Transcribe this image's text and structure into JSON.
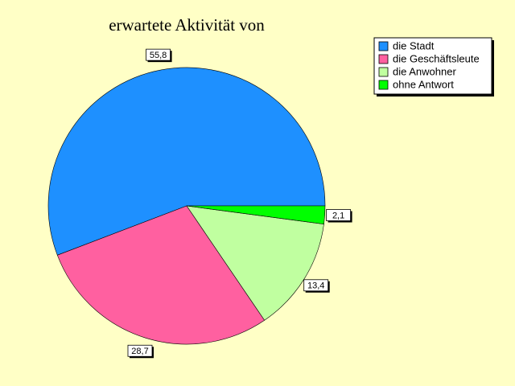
{
  "chart_data": {
    "type": "pie",
    "title": "erwartete Aktivität von",
    "categories": [
      "die Stadt",
      "die Geschäftsleute",
      "die Anwohner",
      "ohne Antwort"
    ],
    "values": [
      55.8,
      28.7,
      13.4,
      2.1
    ],
    "value_labels": [
      "55,8",
      "28,7",
      "13,4",
      "2,1"
    ],
    "colors": [
      "#1e90ff",
      "#ff60a0",
      "#c0ffa0",
      "#00ff00"
    ]
  }
}
